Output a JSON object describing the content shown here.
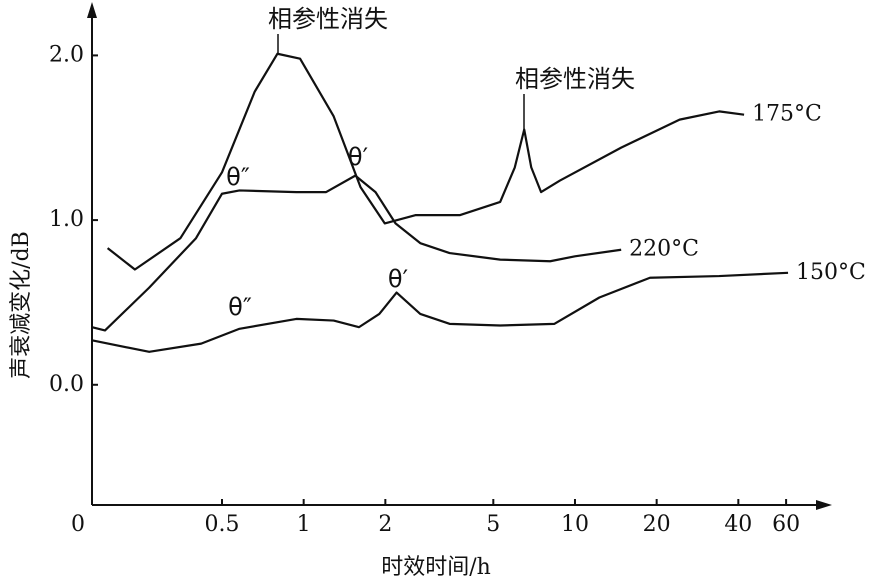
{
  "chart_data": {
    "type": "line",
    "x_label": "时效时间/h",
    "y_label": "声衰减变化/dB",
    "xscale": "log",
    "xlim": [
      0,
      80
    ],
    "xticks": [
      0,
      0.5,
      1,
      2,
      5,
      10,
      20,
      40,
      60
    ],
    "ylim": [
      -0.73,
      2.3
    ],
    "yticks": [
      {
        "value": 0,
        "label": "0.0"
      },
      {
        "value": 1,
        "label": "1.0"
      },
      {
        "value": 2,
        "label": "2.0"
      }
    ],
    "series": [
      {
        "name": "175°C",
        "color": "#111111",
        "x": [
          0.06,
          0.165,
          0.34,
          0.5,
          0.66,
          0.8,
          0.97,
          1.29,
          1.62,
          1.99,
          2.58,
          3.76,
          5.3,
          6.0,
          6.5,
          6.9,
          7.5,
          8.8,
          14.8,
          24.3,
          34,
          42
        ],
        "values": [
          0.83,
          0.7,
          0.89,
          1.29,
          1.78,
          2.01,
          1.98,
          1.63,
          1.2,
          0.98,
          1.03,
          1.03,
          1.11,
          1.32,
          1.55,
          1.32,
          1.17,
          1.24,
          1.44,
          1.61,
          1.66,
          1.64
        ]
      },
      {
        "name": "220°C",
        "color": "#111111",
        "x": [
          0,
          0.05,
          0.22,
          0.4,
          0.5,
          0.58,
          0.94,
          1.21,
          1.55,
          1.84,
          2.18,
          2.69,
          3.45,
          5.3,
          8.1,
          10,
          14.8
        ],
        "values": [
          0.35,
          0.33,
          0.59,
          0.89,
          1.16,
          1.18,
          1.17,
          1.17,
          1.27,
          1.17,
          0.98,
          0.86,
          0.8,
          0.76,
          0.75,
          0.78,
          0.82
        ]
      },
      {
        "name": "150°C",
        "color": "#111111",
        "x": [
          0,
          0.22,
          0.42,
          0.58,
          0.94,
          1.29,
          1.6,
          1.9,
          2.2,
          2.69,
          3.45,
          5.3,
          8.4,
          12.3,
          18.9,
          34,
          61
        ],
        "values": [
          0.27,
          0.2,
          0.25,
          0.34,
          0.4,
          0.39,
          0.35,
          0.43,
          0.56,
          0.43,
          0.37,
          0.36,
          0.37,
          0.53,
          0.65,
          0.66,
          0.68
        ]
      }
    ],
    "annotations": [
      "相参性消失",
      "相参性消失",
      "θ″",
      "θ′",
      "θ″",
      "θ′"
    ]
  }
}
